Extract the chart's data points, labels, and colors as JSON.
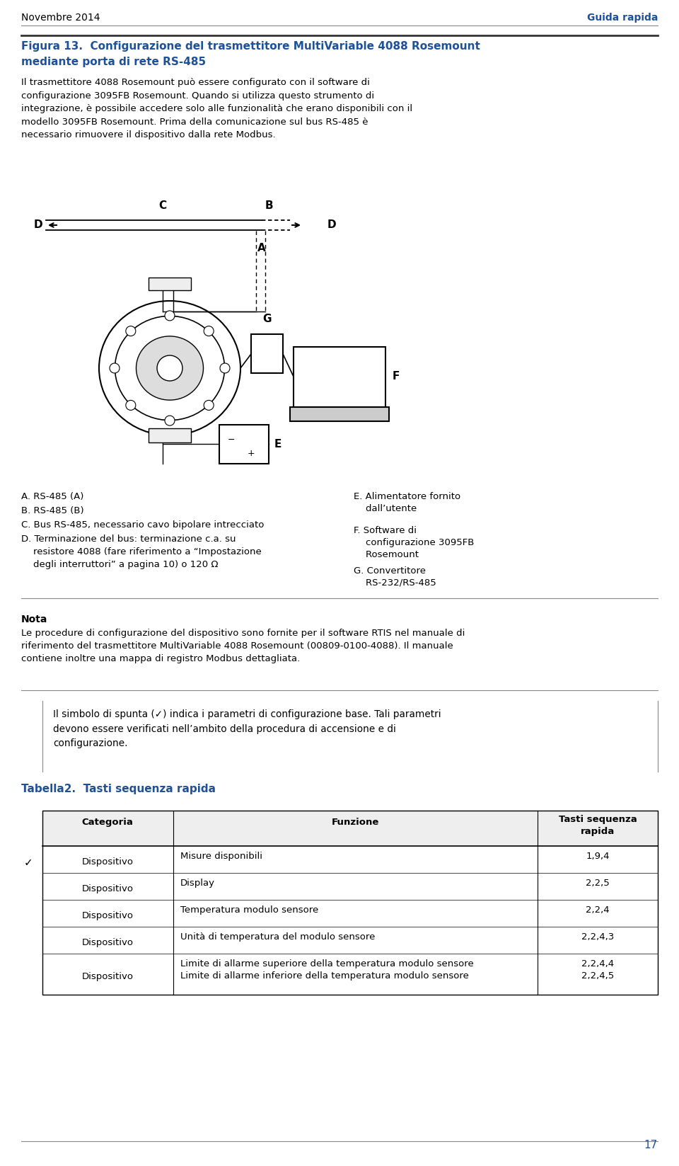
{
  "header_left": "Novembre 2014",
  "header_right": "Guida rapida",
  "header_color": "#1F5199",
  "fig_title_line1": "Figura 13.  Configurazione del trasmettitore MultiVariable 4088 Rosemount",
  "fig_title_line2": "mediante porta di rete RS-485",
  "fig_title_color": "#1F5199",
  "body_text1": "Il trasmettitore 4088 Rosemount può essere configurato con il software di\nconfigurazione 3095FB Rosemount. Quando si utilizza questo strumento di\nintegrazione, è possibile accedere solo alle funzionalità che erano disponibili con il\nmodello 3095FB Rosemount. Prima della comunicazione sul bus RS-485 è\nnecessario rimuovere il dispositivo dalla rete Modbus.",
  "legend_left": [
    "A. RS-485 (A)",
    "B. RS-485 (B)",
    "C. Bus RS-485, necessario cavo bipolare intrecciato",
    "D. Terminazione del bus: terminazione c.a. su\n    resistore 4088 (fare riferimento a “Impostazione\n    degli interruttori” a pagina 10) o 120 Ω"
  ],
  "legend_right": [
    "E. Alimentatore fornito\n    dall’utente",
    "F. Software di\n    configurazione 3095FB\n    Rosemount",
    "G. Convertitore\n    RS-232/RS-485"
  ],
  "nota_title": "Nota",
  "nota_body": "Le procedure di configurazione del dispositivo sono fornite per il software RTIS nel manuale di\nriferimento del trasmettitore MultiVariable 4088 Rosemount (00809-0100-4088). Il manuale\ncontiene inoltre una mappa di registro Modbus dettagliata.",
  "checkmark_note": "Il simbolo di spunta (✓) indica i parametri di configurazione base. Tali parametri\ndevono essere verificati nell’ambito della procedura di accensione e di\nconfigurazione.",
  "table_title": "Tabella2.  Tasti sequenza rapida",
  "table_title_color": "#1F5199",
  "table_headers": [
    "Categoria",
    "Funzione",
    "Tasti sequenza\nrapida"
  ],
  "table_rows": [
    [
      "Dispositivo",
      "Misure disponibili",
      "1,9,4",
      true
    ],
    [
      "Dispositivo",
      "Display",
      "2,2,5",
      false
    ],
    [
      "Dispositivo",
      "Temperatura modulo sensore",
      "2,2,4",
      false
    ],
    [
      "Dispositivo",
      "Unità di temperatura del modulo sensore",
      "2,2,4,3",
      false
    ],
    [
      "Dispositivo",
      "Limite di allarme superiore della temperatura modulo sensore\nLimite di allarme inferiore della temperatura modulo sensore",
      "2,2,4,4\n2,2,4,5",
      false
    ]
  ],
  "page_number": "17",
  "page_number_color": "#1F5199",
  "bg_color": "#FFFFFF",
  "text_color": "#000000"
}
